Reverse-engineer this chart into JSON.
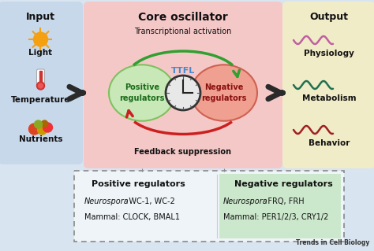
{
  "bg_color": "#d8e4f0",
  "input_box_color": "#c8d8eb",
  "core_box_color": "#f5c8c8",
  "output_box_color": "#f0ecc8",
  "input_title": "Input",
  "core_title": "Core oscillator",
  "output_title": "Output",
  "input_items": [
    "Light",
    "Temperature",
    "Nutrients"
  ],
  "output_items": [
    "Physiology",
    "Metabolism",
    "Behavior"
  ],
  "output_wave_colors": [
    "#c060a0",
    "#207050",
    "#a02020"
  ],
  "pos_reg_label": "Positive\nregulators",
  "neg_reg_label": "Negative\nregulators",
  "ttfl_label": "TTFL",
  "ttfl_color": "#4488cc",
  "transcription_label": "Transcriptional activation",
  "feedback_label": "Feedback suppression",
  "pos_circle_color": "#c8e8b8",
  "pos_circle_edge": "#80c060",
  "neg_circle_color": "#f0a090",
  "neg_circle_edge": "#d06050",
  "green_arrow_color": "#30a030",
  "red_arrow_color": "#cc2020",
  "black_arrow_color": "#2a2a2a",
  "bottom_box_title_pos": "Positive regulators",
  "bottom_box_title_neg": "Negative regulators",
  "bottom_neg_bg": "#cce8cc",
  "trends_label": "Trends in Cell Biology",
  "fig_w": 4.74,
  "fig_h": 3.19,
  "dpi": 100
}
